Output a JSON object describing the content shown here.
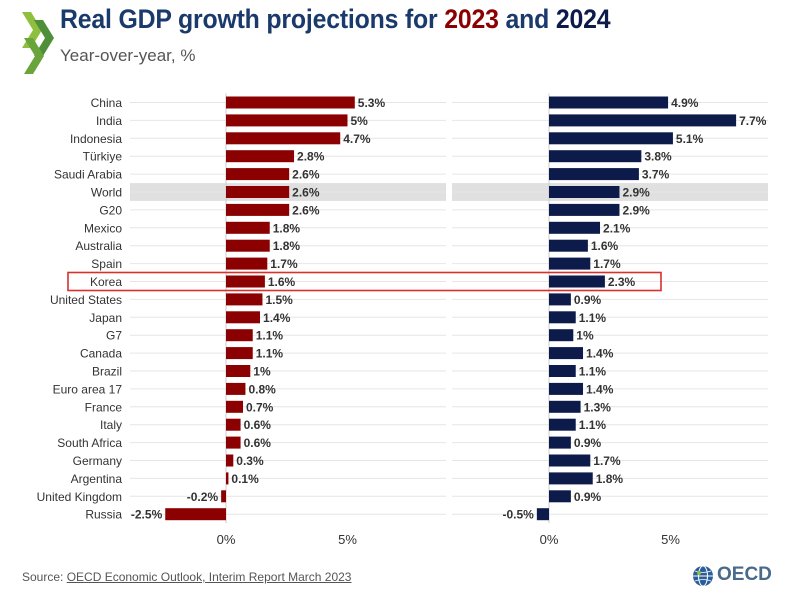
{
  "header": {
    "title_prefix": "Real GDP growth projections for ",
    "title_year1": "2023",
    "title_and": " and ",
    "title_year2": "2024",
    "subtitle": "Year-over-year, %"
  },
  "footer": {
    "source_label": "Source: ",
    "source_link": "OECD Economic Outlook, Interim Report March 2023",
    "logo_text": "OECD"
  },
  "colors": {
    "series_2023": "#8b0000",
    "series_2024": "#0d1b4a",
    "title_blue": "#1a3a6b",
    "highlight_box": "#d9302c",
    "world_band": "#e0e0e0"
  },
  "icons": [
    "brand-chevron-icon",
    "oecd-globe-icon"
  ],
  "chart_data": [
    {
      "type": "bar",
      "orientation": "horizontal",
      "categories": [
        "China",
        "India",
        "Indonesia",
        "Türkiye",
        "Saudi Arabia",
        "World",
        "G20",
        "Mexico",
        "Australia",
        "Spain",
        "Korea",
        "United States",
        "Japan",
        "G7",
        "Canada",
        "Brazil",
        "Euro area 17",
        "France",
        "Italy",
        "South Africa",
        "Germany",
        "Argentina",
        "United Kingdom",
        "Russia"
      ],
      "series": [
        {
          "name": "2023",
          "values": [
            5.3,
            5,
            4.7,
            2.8,
            2.6,
            2.6,
            2.6,
            1.8,
            1.8,
            1.7,
            1.6,
            1.5,
            1.4,
            1.1,
            1.1,
            1,
            0.8,
            0.7,
            0.6,
            0.6,
            0.3,
            0.1,
            -0.2,
            -2.5
          ]
        }
      ],
      "value_labels": [
        "5.3%",
        "5%",
        "4.7%",
        "2.8%",
        "2.6%",
        "2.6%",
        "2.6%",
        "1.8%",
        "1.8%",
        "1.7%",
        "1.6%",
        "1.5%",
        "1.4%",
        "1.1%",
        "1.1%",
        "1%",
        "0.8%",
        "0.7%",
        "0.6%",
        "0.6%",
        "0.3%",
        "0.1%",
        "-0.2%",
        "-2.5%"
      ],
      "xticks": [
        0,
        5
      ],
      "xtick_labels": [
        "0%",
        "5%"
      ],
      "xlim": [
        -3,
        7.5
      ],
      "highlighted_category": "Korea",
      "shaded_category": "World",
      "grid": "horizontal"
    },
    {
      "type": "bar",
      "orientation": "horizontal",
      "categories": [
        "China",
        "India",
        "Indonesia",
        "Türkiye",
        "Saudi Arabia",
        "World",
        "G20",
        "Mexico",
        "Australia",
        "Spain",
        "Korea",
        "United States",
        "Japan",
        "G7",
        "Canada",
        "Brazil",
        "Euro area 17",
        "France",
        "Italy",
        "South Africa",
        "Germany",
        "Argentina",
        "United Kingdom",
        "Russia"
      ],
      "series": [
        {
          "name": "2024",
          "values": [
            4.9,
            7.7,
            5.1,
            3.8,
            3.7,
            2.9,
            2.9,
            2.1,
            1.6,
            1.7,
            2.3,
            0.9,
            1.1,
            1,
            1.4,
            1.1,
            1.4,
            1.3,
            1.1,
            0.9,
            1.7,
            1.8,
            0.9,
            -0.5
          ]
        }
      ],
      "value_labels": [
        "4.9%",
        "7.7%",
        "5.1%",
        "3.8%",
        "3.7%",
        "2.9%",
        "2.9%",
        "2.1%",
        "1.6%",
        "1.7%",
        "2.3%",
        "0.9%",
        "1.1%",
        "1%",
        "1.4%",
        "1.1%",
        "1.4%",
        "1.3%",
        "1.1%",
        "0.9%",
        "1.7%",
        "1.8%",
        "0.9%",
        "-0.5%"
      ],
      "xticks": [
        0,
        5
      ],
      "xtick_labels": [
        "0%",
        "5%"
      ],
      "xlim": [
        -3.5,
        9
      ],
      "highlighted_category": "Korea",
      "shaded_category": "World",
      "grid": "horizontal"
    }
  ]
}
